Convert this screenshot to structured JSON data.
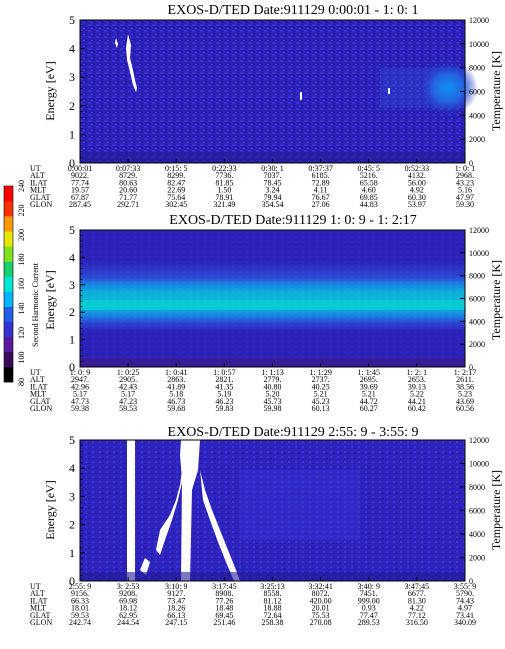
{
  "colorbar": {
    "label": "Second Harmonic Current",
    "ticks": [
      "80",
      "100",
      "120",
      "140",
      "160",
      "180",
      "200",
      "220",
      "240"
    ],
    "colors": [
      "#000000",
      "#3a0a5a",
      "#5a1aa0",
      "#3530d0",
      "#1f5fe6",
      "#00b4ff",
      "#00e6d6",
      "#16d070",
      "#7fe020",
      "#e6e600",
      "#ff9900",
      "#ff3000",
      "#ff0000"
    ]
  },
  "chart_data": [
    {
      "type": "heatmap",
      "title": "EXOS-D/TED   Date:911129  0:00:01 - 1: 0: 1",
      "ylabel": "Energy [eV]",
      "ylabel_right": "Temperature [K]",
      "ylim": [
        0,
        5
      ],
      "ylim_right": [
        0,
        12000
      ],
      "yticks": [
        "0",
        "1",
        "2",
        "3",
        "4",
        "5"
      ],
      "yticks_right": [
        "0",
        "2000",
        "4000",
        "6000",
        "8000",
        "10000",
        "12000"
      ],
      "orbit_table": {
        "rows": [
          {
            "label": "UT",
            "values": [
              "0:00:01",
              "0:07:33",
              "0:15: 5",
              "0:22:33",
              "0:30: 1",
              "0:37:37",
              "0:45: 5",
              "0:52:33",
              "1: 0: 1"
            ]
          },
          {
            "label": "ALT",
            "values": [
              "9022.",
              "8729.",
              "8299.",
              "7736.",
              "7037.",
              "6185.",
              "5216.",
              "4132.",
              "2968."
            ]
          },
          {
            "label": "ILAT",
            "values": [
              "77.74",
              "80.63",
              "82.47",
              "81.85",
              "78.45",
              "72.89",
              "65.58",
              "56.00",
              "43.23"
            ]
          },
          {
            "label": "MLT",
            "values": [
              "19.57",
              "20.60",
              "22.69",
              "1.50",
              "3.24",
              "4.11",
              "4.60",
              "4.92",
              "5.16"
            ]
          },
          {
            "label": "GLAT",
            "values": [
              "67.87",
              "71.77",
              "75.64",
              "78.91",
              "79.94",
              "76.67",
              "69.85",
              "60.30",
              "47.97"
            ]
          },
          {
            "label": "GLON",
            "values": [
              "287.45",
              "292.71",
              "302.45",
              "321.49",
              "354.54",
              "27.06",
              "44.83",
              "53.97",
              "59.30"
            ]
          }
        ]
      }
    },
    {
      "type": "heatmap",
      "title": "EXOS-D/TED   Date:911129  1: 0: 9 - 1: 2:17",
      "ylabel": "Energy [eV]",
      "ylabel_right": "Temperature [K]",
      "ylim": [
        0,
        5
      ],
      "ylim_right": [
        0,
        12000
      ],
      "yticks": [
        "0",
        "1",
        "2",
        "3",
        "4",
        "5"
      ],
      "yticks_right": [
        "0",
        "2000",
        "4000",
        "6000",
        "8000",
        "10000",
        "12000"
      ],
      "orbit_table": {
        "rows": [
          {
            "label": "UT",
            "values": [
              "1: 0: 9",
              "1: 0:25",
              "1: 0:41",
              "1: 0:57",
              "1: 1:13",
              "1: 1:29",
              "1: 1:45",
              "1: 2: 1",
              "1: 2:17"
            ]
          },
          {
            "label": "ALT",
            "values": [
              "2947.",
              "2905.",
              "2863.",
              "2821.",
              "2779.",
              "2737.",
              "2695.",
              "2653.",
              "2611."
            ]
          },
          {
            "label": "ILAT",
            "values": [
              "42.96",
              "42.43",
              "41.89",
              "41.35",
              "40.80",
              "40.25",
              "39.69",
              "39.13",
              "38.56"
            ]
          },
          {
            "label": "MLT",
            "values": [
              "5.17",
              "5.17",
              "5.18",
              "5.19",
              "5.20",
              "5.21",
              "5.21",
              "5.22",
              "5.23"
            ]
          },
          {
            "label": "GLAT",
            "values": [
              "47.73",
              "47.23",
              "46.73",
              "46.23",
              "45.73",
              "45.23",
              "44.72",
              "44.21",
              "43.69"
            ]
          },
          {
            "label": "GLON",
            "values": [
              "59.38",
              "59.53",
              "59.68",
              "59.83",
              "59.98",
              "60.13",
              "60.27",
              "60.42",
              "60.56"
            ]
          }
        ]
      }
    },
    {
      "type": "heatmap",
      "title": "EXOS-D/TED   Date:911129  2:55: 9 - 3:55: 9",
      "ylabel": "Energy [eV]",
      "ylabel_right": "Temperature [K]",
      "ylim": [
        0,
        5
      ],
      "ylim_right": [
        0,
        12000
      ],
      "yticks": [
        "0",
        "1",
        "2",
        "3",
        "4",
        "5"
      ],
      "yticks_right": [
        "0",
        "2000",
        "4000",
        "6000",
        "8000",
        "10000",
        "12000"
      ],
      "orbit_table": {
        "rows": [
          {
            "label": "UT",
            "values": [
              "2:55: 9",
              "3: 2:53",
              "3:10: 9",
              "3:17:45",
              "3:25:13",
              "3:32:41",
              "3:40: 9",
              "3:47:45",
              "3:55: 9"
            ]
          },
          {
            "label": "ALT",
            "values": [
              "9156.",
              "9208.",
              "9127.",
              "8908.",
              "8558.",
              "8072.",
              "7451.",
              "6677.",
              "5790."
            ]
          },
          {
            "label": "ILAT",
            "values": [
              "66.33",
              "69.98",
              "73.47",
              "77.26",
              "81.12",
              "420.00",
              "999.00",
              "81.30",
              "74.43"
            ]
          },
          {
            "label": "MLT",
            "values": [
              "18.01",
              "18.12",
              "18.26",
              "18.48",
              "18.88",
              "20.01",
              "0.93",
              "4.22",
              "4.97"
            ]
          },
          {
            "label": "GLAT",
            "values": [
              "59.53",
              "62.95",
              "66.13",
              "69.45",
              "72.64",
              "75.53",
              "77.47",
              "77.12",
              "73.41"
            ]
          },
          {
            "label": "GLON",
            "values": [
              "242.74",
              "244.54",
              "247.15",
              "251.46",
              "258.38",
              "270.08",
              "289.53",
              "316.50",
              "340.09"
            ]
          }
        ]
      }
    }
  ]
}
